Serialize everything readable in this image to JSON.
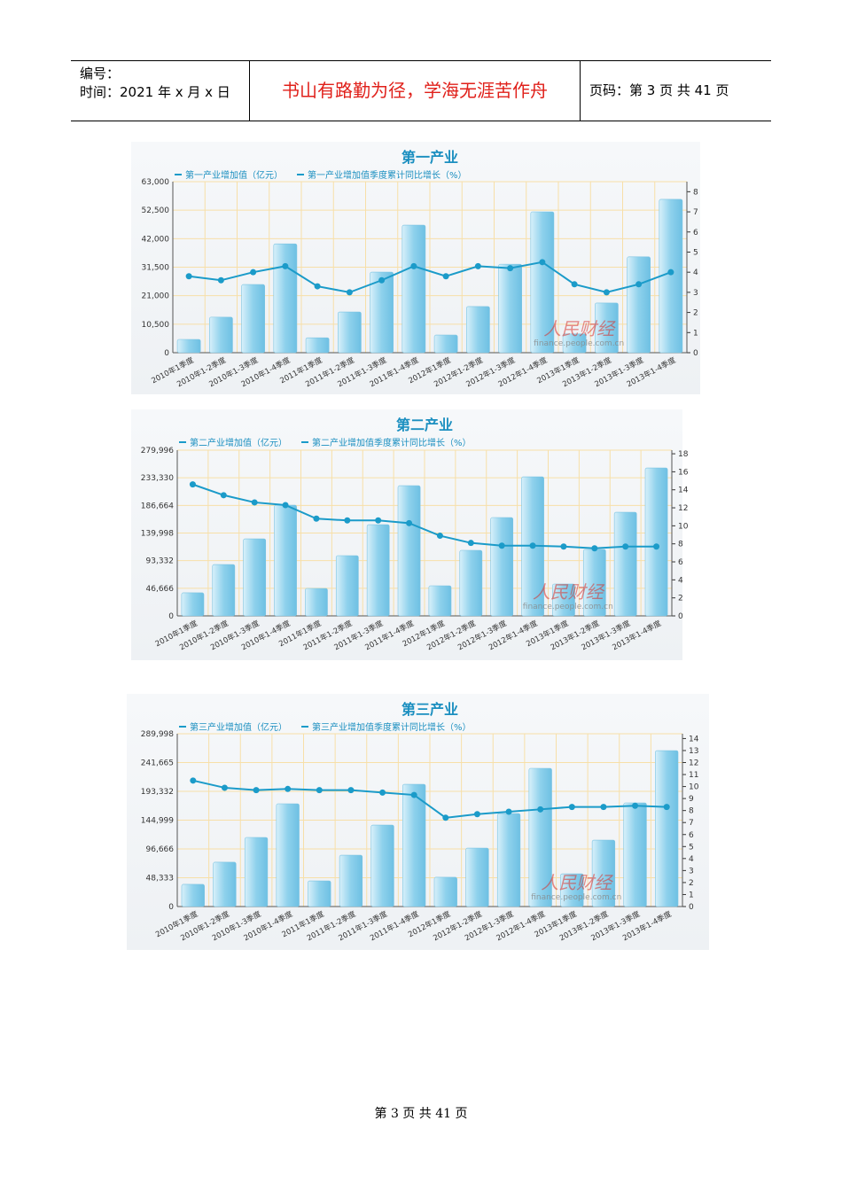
{
  "header": {
    "number_label": "编号：",
    "date": "时间：2021 年 x 月 x 日",
    "motto": "书山有路勤为径，学海无涯苦作舟",
    "page": "页码：第 3 页  共 41 页"
  },
  "footer": "第 3 页 共 41 页",
  "chart_data": [
    {
      "type": "bar-line",
      "title": "第一产业",
      "categories": [
        "2010年1季度",
        "2010年1-2季度",
        "2010年1-3季度",
        "2010年1-4季度",
        "2011年1季度",
        "2011年1-2季度",
        "2011年1-3季度",
        "2011年1-4季度",
        "2012年1季度",
        "2012年1-2季度",
        "2012年1-3季度",
        "2012年1-4季度",
        "2013年1季度",
        "2013年1-2季度",
        "2013年1-3季度",
        "2013年1-4季度"
      ],
      "series": [
        {
          "name": "第一产业增加值（亿元）",
          "color": "#8ed1ec",
          "values": [
            4900,
            13100,
            25100,
            40100,
            5500,
            15000,
            29700,
            47000,
            6500,
            17000,
            32600,
            51900,
            6900,
            18300,
            35300,
            56500
          ]
        },
        {
          "name": "第一产业增加值季度累计同比增长（%）",
          "color": "#1b9bc9",
          "axis": "y2",
          "values": [
            3.8,
            3.6,
            4.0,
            4.3,
            3.3,
            3.0,
            3.6,
            4.3,
            3.8,
            4.3,
            4.2,
            4.5,
            3.4,
            3.0,
            3.4,
            4.0
          ]
        }
      ],
      "ylim": [
        0,
        63000
      ],
      "yticks": [
        0,
        {
          "value": 10500,
          "label": "10,500"
        },
        {
          "value": 21000,
          "label": "21,000"
        },
        {
          "value": 31500,
          "label": "31,500"
        },
        {
          "value": 42000,
          "label": "42,000"
        },
        {
          "value": 52500,
          "label": "52,500"
        },
        {
          "value": 63000,
          "label": "63,000"
        }
      ],
      "y2lim": [
        0,
        8.5
      ],
      "y2ticks": [
        0,
        1,
        2,
        3,
        4,
        5,
        6,
        7,
        8
      ],
      "grid": true,
      "watermark": [
        "人民财经",
        "finance.people.com.cn"
      ]
    },
    {
      "type": "bar-line",
      "title": "第二产业",
      "categories": [
        "2010年1季度",
        "2010年1-2季度",
        "2010年1-3季度",
        "2010年1-4季度",
        "2011年1季度",
        "2011年1-2季度",
        "2011年1-3季度",
        "2011年1-4季度",
        "2012年1季度",
        "2012年1-2季度",
        "2012年1-3季度",
        "2012年1-4季度",
        "2013年1季度",
        "2013年1-2季度",
        "2013年1-3季度",
        "2013年1-4季度"
      ],
      "series": [
        {
          "name": "第二产业增加值（亿元）",
          "color": "#8ed1ec",
          "values": [
            39000,
            86800,
            130200,
            187100,
            46400,
            101800,
            154200,
            220000,
            50900,
            110800,
            166200,
            235000,
            53900,
            112300,
            175100,
            250000
          ]
        },
        {
          "name": "第二产业增加值季度累计同比增长（%）",
          "color": "#1b9bc9",
          "axis": "y2",
          "values": [
            14.6,
            13.4,
            12.6,
            12.3,
            10.8,
            10.6,
            10.6,
            10.3,
            8.9,
            8.1,
            7.8,
            7.8,
            7.7,
            7.5,
            7.7,
            7.7
          ]
        }
      ],
      "ylim": [
        0,
        279996
      ],
      "yticks": [
        0,
        {
          "value": 46666,
          "label": "46,666"
        },
        {
          "value": 93332,
          "label": "93,332"
        },
        {
          "value": 139998,
          "label": "139,998"
        },
        {
          "value": 186664,
          "label": "186,664"
        },
        {
          "value": 233330,
          "label": "233,330"
        },
        {
          "value": 279996,
          "label": "279,996"
        }
      ],
      "y2lim": [
        0,
        18.4
      ],
      "y2ticks": [
        0,
        2,
        4,
        6,
        8,
        10,
        12,
        14,
        16,
        18
      ],
      "grid": true,
      "watermark": [
        "人民财经",
        "finance.people.com.cn"
      ]
    },
    {
      "type": "bar-line",
      "title": "第三产业",
      "categories": [
        "2010年1季度",
        "2010年1-2季度",
        "2010年1-3季度",
        "2010年1-4季度",
        "2011年1季度",
        "2011年1-2季度",
        "2011年1-3季度",
        "2011年1-4季度",
        "2012年1季度",
        "2012年1-2季度",
        "2012年1-3季度",
        "2012年1-4季度",
        "2013年1季度",
        "2013年1-2季度",
        "2013年1-3季度",
        "2013年1-4季度"
      ],
      "series": [
        {
          "name": "第三产业增加值（亿元）",
          "color": "#8ed1ec",
          "values": [
            37200,
            74400,
            116000,
            172500,
            43100,
            86200,
            136800,
            205200,
            49100,
            98100,
            156100,
            232000,
            55000,
            111500,
            174000,
            261700
          ]
        },
        {
          "name": "第三产业增加值季度累计同比增长（%）",
          "color": "#1b9bc9",
          "axis": "y2",
          "values": [
            10.5,
            9.9,
            9.7,
            9.8,
            9.7,
            9.7,
            9.5,
            9.3,
            7.4,
            7.7,
            7.9,
            8.1,
            8.3,
            8.3,
            8.4,
            8.3
          ]
        }
      ],
      "ylim": [
        0,
        289998
      ],
      "yticks": [
        0,
        {
          "value": 48333,
          "label": "48,333"
        },
        {
          "value": 96666,
          "label": "96,666"
        },
        {
          "value": 144999,
          "label": "144,999"
        },
        {
          "value": 193332,
          "label": "193,332"
        },
        {
          "value": 241665,
          "label": "241,665"
        },
        {
          "value": 289998,
          "label": "289,998"
        }
      ],
      "y2lim": [
        0,
        14.4
      ],
      "y2ticks": [
        0,
        1,
        2,
        3,
        4,
        5,
        6,
        7,
        8,
        9,
        10,
        11,
        12,
        13,
        14
      ],
      "grid": true,
      "watermark": [
        "人民财经",
        "finance.people.com.cn"
      ]
    }
  ]
}
